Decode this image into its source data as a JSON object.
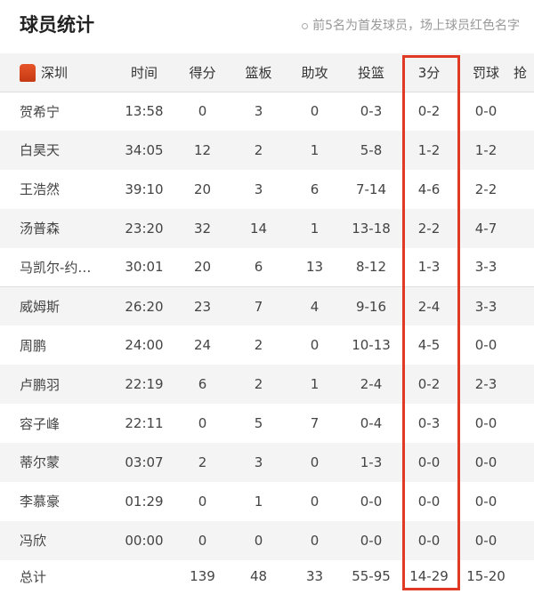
{
  "header": {
    "title": "球员统计",
    "note": "前5名为首发球员，场上球员红色名字"
  },
  "team": {
    "name": "深圳",
    "logo": "team-logo"
  },
  "columns": [
    "时间",
    "得分",
    "篮板",
    "助攻",
    "投篮",
    "3分",
    "罚球",
    "抢"
  ],
  "players": [
    [
      "贺希宁",
      "13:58",
      "0",
      "3",
      "0",
      "0-3",
      "0-2",
      "0-0"
    ],
    [
      "白昊天",
      "34:05",
      "12",
      "2",
      "1",
      "5-8",
      "1-2",
      "1-2"
    ],
    [
      "王浩然",
      "39:10",
      "20",
      "3",
      "6",
      "7-14",
      "4-6",
      "2-2"
    ],
    [
      "汤普森",
      "23:20",
      "32",
      "14",
      "1",
      "13-18",
      "2-2",
      "4-7"
    ],
    [
      "马凯尔-约…",
      "30:01",
      "20",
      "6",
      "13",
      "8-12",
      "1-3",
      "3-3"
    ],
    [
      "威姆斯",
      "26:20",
      "23",
      "7",
      "4",
      "9-16",
      "2-4",
      "3-3"
    ],
    [
      "周鹏",
      "24:00",
      "24",
      "2",
      "0",
      "10-13",
      "4-5",
      "0-0"
    ],
    [
      "卢鹏羽",
      "22:19",
      "6",
      "2",
      "1",
      "2-4",
      "0-2",
      "2-3"
    ],
    [
      "容子峰",
      "22:11",
      "0",
      "5",
      "7",
      "0-4",
      "0-3",
      "0-0"
    ],
    [
      "蒂尔蒙",
      "03:07",
      "2",
      "3",
      "0",
      "1-3",
      "0-0",
      "0-0"
    ],
    [
      "李慕豪",
      "01:29",
      "0",
      "1",
      "0",
      "0-0",
      "0-0",
      "0-0"
    ],
    [
      "冯欣",
      "00:00",
      "0",
      "0",
      "0",
      "0-0",
      "0-0",
      "0-0"
    ]
  ],
  "total": [
    "总计",
    "",
    "139",
    "48",
    "33",
    "55-95",
    "14-29",
    "15-20"
  ],
  "highlight_color": "#e03a24"
}
